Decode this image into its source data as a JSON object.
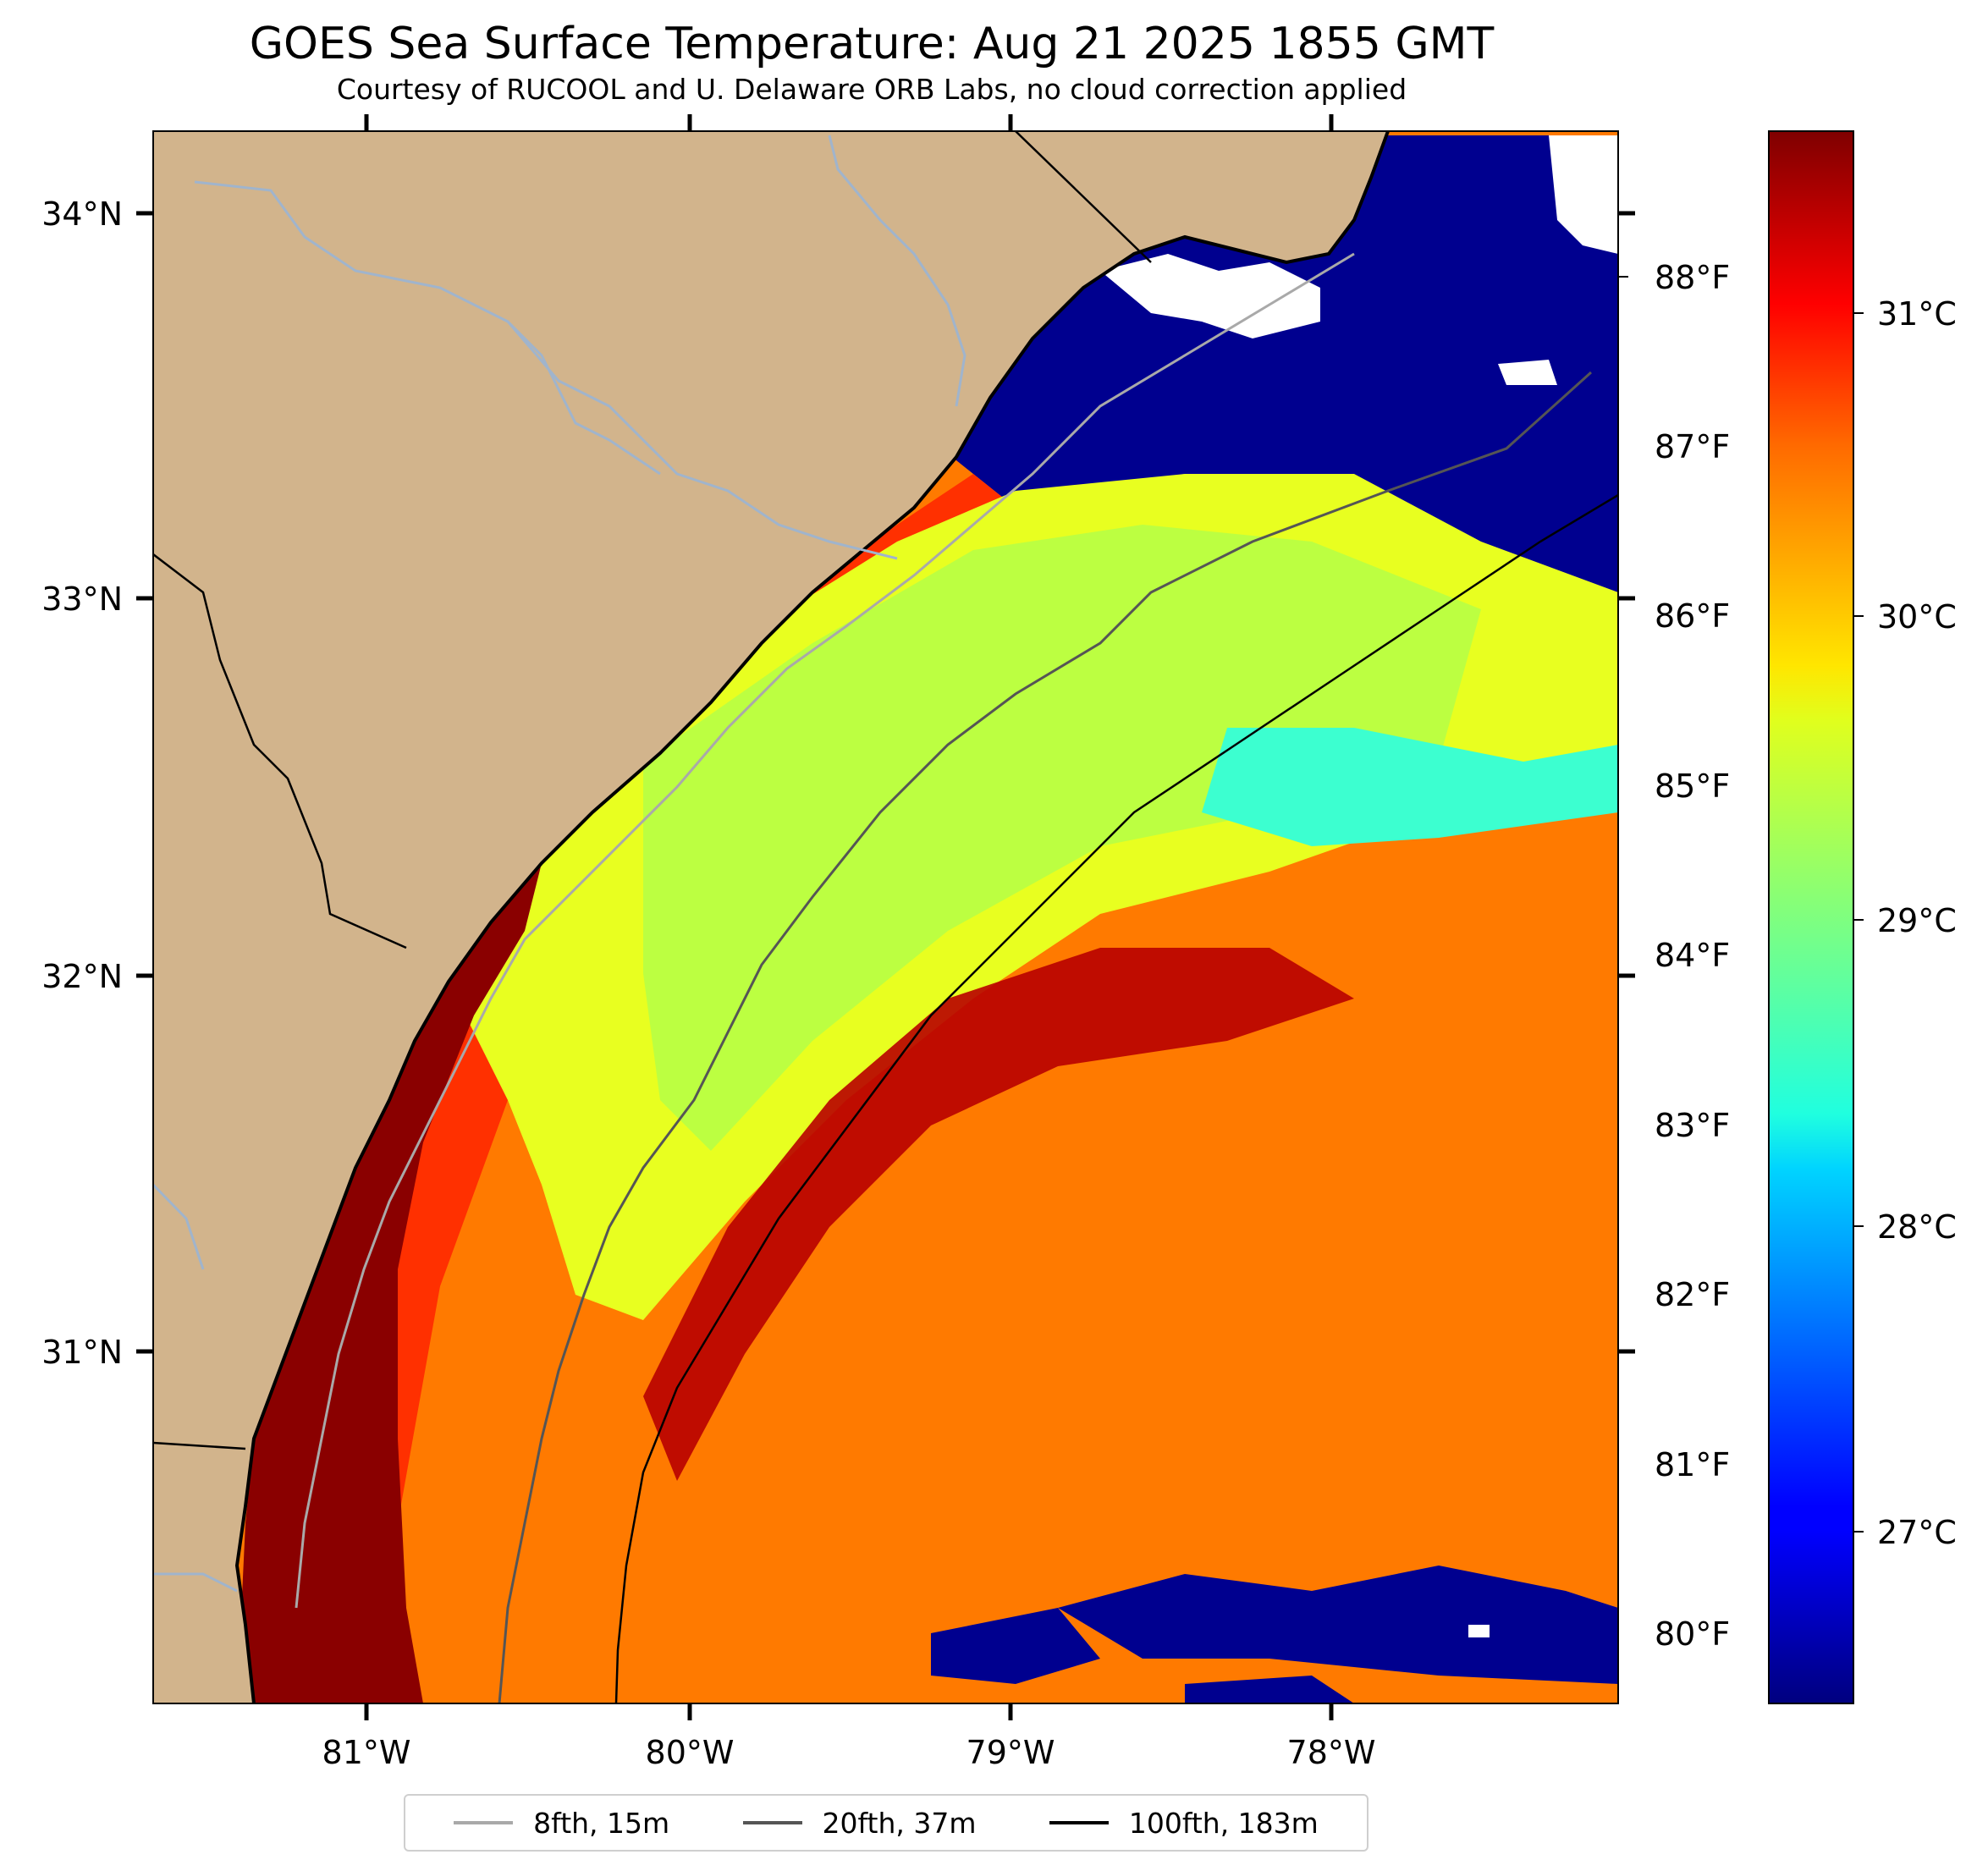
{
  "title": "GOES Sea Surface Temperature: Aug 21 2025 1855 GMT",
  "subtitle": "Courtesy of RUCOOL and U. Delaware ORB Labs, no cloud correction applied",
  "map": {
    "lat_ticks": [
      "34°N",
      "33°N",
      "32°N",
      "31°N"
    ],
    "lon_ticks": [
      "81°W",
      "80°W",
      "79°W",
      "78°W"
    ],
    "colors": {
      "land": "#d2b48c",
      "cloud": "#ffffff",
      "coast": "#000000",
      "river": "#a0b4cc"
    }
  },
  "colorbar": {
    "colormap": "jet",
    "range_celsius": [
      26.5,
      31.7
    ],
    "celsius_ticks": [
      "31°C",
      "30°C",
      "29°C",
      "28°C",
      "27°C"
    ],
    "fahrenheit_ticks": [
      "88°F",
      "87°F",
      "86°F",
      "85°F",
      "84°F",
      "83°F",
      "82°F",
      "81°F",
      "80°F"
    ]
  },
  "legend": {
    "items": [
      {
        "label": "8fth, 15m",
        "color": "#a9a9a9"
      },
      {
        "label": "20fth, 37m",
        "color": "#555555"
      },
      {
        "label": "100fth, 183m",
        "color": "#000000"
      }
    ]
  }
}
